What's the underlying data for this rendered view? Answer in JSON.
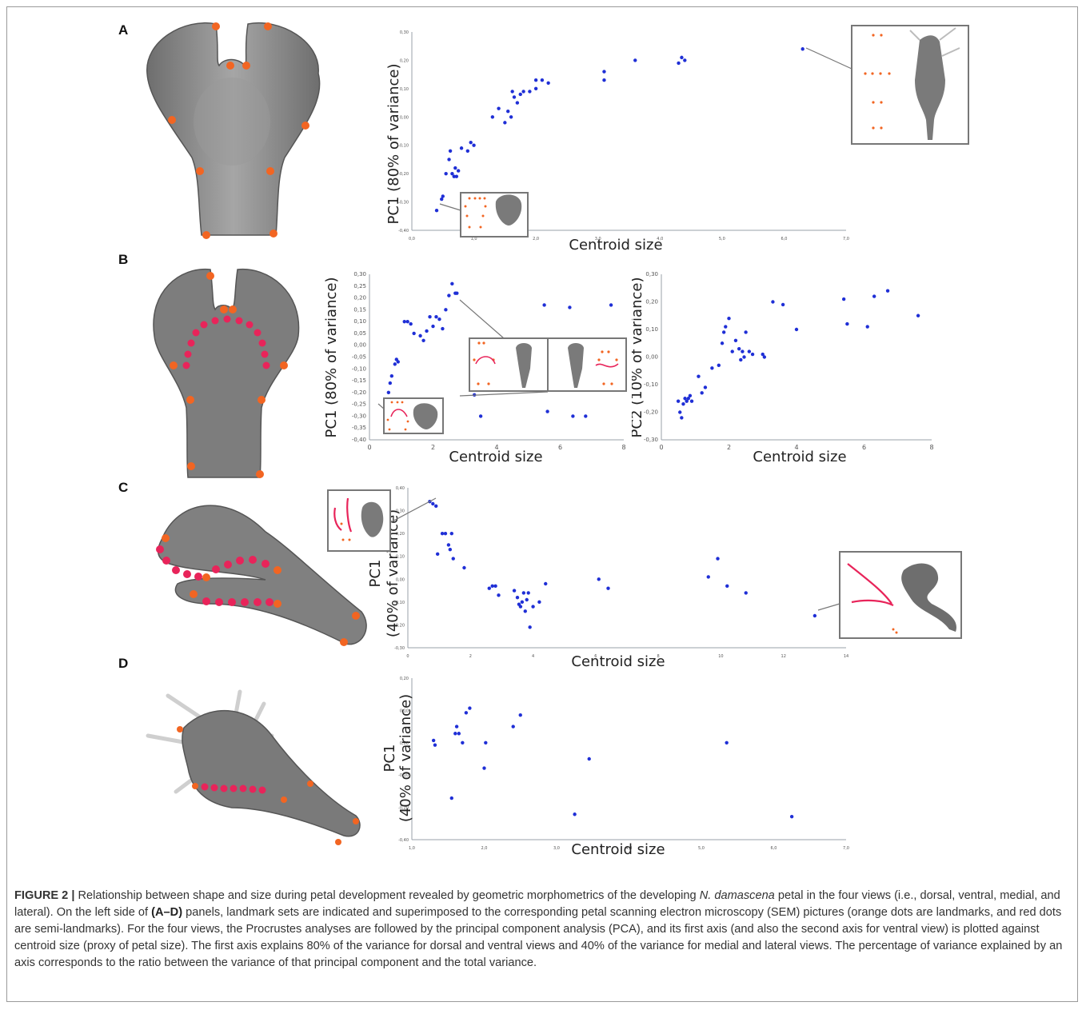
{
  "figure": {
    "panels": [
      {
        "letter": "A",
        "axes": [
          {
            "ylabel": "PC1 (80% of variance)",
            "xlabel": "Centroid size"
          }
        ]
      },
      {
        "letter": "B",
        "axes": [
          {
            "ylabel": "PC1 (80% of variance)",
            "xlabel": "Centroid size"
          },
          {
            "ylabel": "PC2 (10% of variance)",
            "xlabel": "Centroid size"
          }
        ]
      },
      {
        "letter": "C",
        "axes": [
          {
            "ylabel_line1": "PC1",
            "ylabel_line2": "(40% of variance)",
            "xlabel": "Centroid size"
          }
        ]
      },
      {
        "letter": "D",
        "axes": [
          {
            "ylabel_line1": "PC1",
            "ylabel_line2": "(40% of variance)",
            "xlabel": "Centroid size"
          }
        ]
      }
    ],
    "caption": {
      "label": "FIGURE 2 |",
      "part1": " Relationship between shape and size during petal development revealed by geometric morphometrics of the developing ",
      "species": "N. damascena",
      "part2": " petal in the four views (i.e., dorsal, ventral, medial, and lateral). On the left side of ",
      "panels_ref": "(A–D)",
      "part3": " panels, landmark sets are indicated and superimposed to the corresponding petal scanning electron microscopy (SEM) pictures (orange dots are landmarks, and red dots are semi-landmarks). For the four views, the Procrustes analyses are followed by the principal component analysis (PCA), and its first axis (and also the second axis for ventral view) is plotted against centroid size (proxy of petal size). The first axis explains 80% of the variance for dorsal and ventral views and 40% of the variance for medial and lateral views. The percentage of variance explained by an axis corresponds to the ratio between the variance of that principal component and the total variance."
    },
    "colors": {
      "points": "#1f2fd6",
      "landmark": "#f26522",
      "semilandmark": "#e8245a",
      "axis": "#9aa0a8",
      "petal": "#8c8c8c"
    }
  },
  "chart_data": [
    {
      "panel": "A",
      "type": "scatter",
      "xlabel": "Centroid size",
      "ylabel": "PC1 (80% of variance)",
      "xlim": [
        0,
        7
      ],
      "ylim": [
        -0.4,
        0.3
      ],
      "xticks": [
        "0,0",
        "1,0",
        "2,0",
        "3,0",
        "4,0",
        "5,0",
        "6,0",
        "7,0"
      ],
      "yticks": [
        "0,30",
        "0,20",
        "0,10",
        "0,00",
        "-0,10",
        "-0,20",
        "-0,30",
        "-0,40"
      ],
      "x": [
        0.4,
        0.5,
        0.48,
        0.55,
        0.6,
        0.62,
        0.65,
        0.68,
        0.7,
        0.72,
        0.75,
        0.8,
        0.9,
        0.95,
        1.0,
        1.3,
        1.4,
        1.5,
        1.55,
        1.6,
        1.62,
        1.65,
        1.7,
        1.75,
        1.8,
        1.9,
        2.0,
        2.0,
        2.1,
        2.2,
        3.1,
        3.1,
        3.6,
        4.3,
        4.35,
        4.4,
        6.3
      ],
      "y": [
        -0.33,
        -0.28,
        -0.29,
        -0.2,
        -0.15,
        -0.12,
        -0.2,
        -0.21,
        -0.18,
        -0.21,
        -0.19,
        -0.11,
        -0.12,
        -0.09,
        -0.1,
        0.0,
        0.03,
        -0.02,
        0.02,
        0.0,
        0.09,
        0.07,
        0.05,
        0.08,
        0.09,
        0.09,
        0.1,
        0.13,
        0.13,
        0.12,
        0.16,
        0.13,
        0.2,
        0.19,
        0.21,
        0.2,
        0.24
      ]
    },
    {
      "panel": "B-left",
      "type": "scatter",
      "xlabel": "Centroid size",
      "ylabel": "PC1 (80% of variance)",
      "xlim": [
        0,
        8
      ],
      "ylim": [
        -0.4,
        0.3
      ],
      "xticks": [
        "0",
        "2",
        "4",
        "6",
        "8"
      ],
      "yticks": [
        "0,30",
        "0,25",
        "0,20",
        "0,15",
        "0,10",
        "0,05",
        "0,00",
        "-0,05",
        "-0,10",
        "-0,15",
        "-0,20",
        "-0,25",
        "-0,30",
        "-0,35",
        "-0,40"
      ],
      "x": [
        0.5,
        0.6,
        0.6,
        0.65,
        0.7,
        0.8,
        0.85,
        0.9,
        1.1,
        1.2,
        1.3,
        1.4,
        1.6,
        1.8,
        1.7,
        1.9,
        2.0,
        2.1,
        2.2,
        2.3,
        2.4,
        2.5,
        2.6,
        2.7,
        2.75,
        3.3,
        3.5,
        5.5,
        5.6,
        6.3,
        6.4,
        6.8,
        7.6
      ],
      "y": [
        -0.26,
        -0.27,
        -0.2,
        -0.16,
        -0.13,
        -0.08,
        -0.06,
        -0.07,
        0.1,
        0.1,
        0.09,
        0.05,
        0.04,
        0.06,
        0.02,
        0.12,
        0.08,
        0.12,
        0.11,
        0.07,
        0.15,
        0.21,
        0.26,
        0.22,
        0.22,
        -0.21,
        -0.3,
        0.17,
        -0.28,
        0.16,
        -0.3,
        -0.3,
        0.17
      ]
    },
    {
      "panel": "B-right",
      "type": "scatter",
      "xlabel": "Centroid size",
      "ylabel": "PC2 (10% of variance)",
      "xlim": [
        0,
        8
      ],
      "ylim": [
        -0.3,
        0.3
      ],
      "xticks": [
        "0",
        "2",
        "4",
        "6",
        "8"
      ],
      "yticks": [
        "0,30",
        "0,20",
        "0,10",
        "0,00",
        "-0,10",
        "-0,20",
        "-0,30"
      ],
      "x": [
        0.5,
        0.55,
        0.6,
        0.65,
        0.7,
        0.75,
        0.8,
        0.85,
        0.9,
        1.1,
        1.2,
        1.3,
        1.5,
        1.7,
        1.8,
        1.85,
        1.9,
        2.0,
        2.1,
        2.2,
        2.3,
        2.35,
        2.4,
        2.45,
        2.5,
        2.6,
        2.7,
        3.0,
        3.05,
        3.3,
        3.6,
        4.0,
        5.4,
        5.5,
        6.1,
        6.3,
        6.7,
        7.6
      ],
      "y": [
        -0.16,
        -0.2,
        -0.22,
        -0.17,
        -0.15,
        -0.16,
        -0.15,
        -0.14,
        -0.16,
        -0.07,
        -0.13,
        -0.11,
        -0.04,
        -0.03,
        0.05,
        0.09,
        0.11,
        0.14,
        0.02,
        0.06,
        0.03,
        -0.01,
        0.02,
        0.0,
        0.09,
        0.02,
        0.01,
        0.01,
        0.0,
        0.2,
        0.19,
        0.1,
        0.21,
        0.12,
        0.11,
        0.22,
        0.24,
        0.15
      ]
    },
    {
      "panel": "C",
      "type": "scatter",
      "xlabel": "Centroid size",
      "ylabel": "PC1 (40% of variance)",
      "xlim": [
        0,
        14
      ],
      "ylim": [
        -0.3,
        0.4
      ],
      "xticks": [
        "0",
        "2",
        "4",
        "6",
        "8",
        "10",
        "12",
        "14"
      ],
      "yticks": [
        "0,40",
        "0,30",
        "0,20",
        "0,10",
        "0,00",
        "-0,10",
        "-0,20",
        "-0,30"
      ],
      "x": [
        0.7,
        0.8,
        0.9,
        0.95,
        1.1,
        1.2,
        1.3,
        1.35,
        1.4,
        1.45,
        1.8,
        2.6,
        2.7,
        2.8,
        2.9,
        3.4,
        3.5,
        3.55,
        3.6,
        3.65,
        3.7,
        3.75,
        3.8,
        3.85,
        3.9,
        4.0,
        4.2,
        4.4,
        6.1,
        6.4,
        9.6,
        9.9,
        10.2,
        10.8,
        13.0
      ],
      "y": [
        0.34,
        0.33,
        0.32,
        0.11,
        0.2,
        0.2,
        0.15,
        0.13,
        0.2,
        0.09,
        0.05,
        -0.04,
        -0.03,
        -0.03,
        -0.07,
        -0.05,
        -0.08,
        -0.11,
        -0.12,
        -0.1,
        -0.06,
        -0.14,
        -0.09,
        -0.06,
        -0.21,
        -0.12,
        -0.1,
        -0.02,
        0.0,
        -0.04,
        0.01,
        0.09,
        -0.03,
        -0.06,
        -0.16
      ]
    },
    {
      "panel": "D",
      "type": "scatter",
      "xlabel": "Centroid size",
      "ylabel": "PC1 (40% of variance)",
      "xlim": [
        1,
        7
      ],
      "ylim": [
        -0.4,
        0.3
      ],
      "xticks": [
        "1,0",
        "2,0",
        "3,0",
        "4,0",
        "5,0",
        "6,0",
        "7,0"
      ],
      "yticks": [
        "0,20",
        "0,10",
        "0,00",
        "-0,10",
        "-0,20",
        "-0,40"
      ],
      "x": [
        1.3,
        1.32,
        1.55,
        1.6,
        1.62,
        1.65,
        1.7,
        1.75,
        1.8,
        2.0,
        2.02,
        2.4,
        2.5,
        3.25,
        3.45,
        5.35,
        6.25
      ],
      "y": [
        0.03,
        0.01,
        -0.22,
        0.06,
        0.09,
        0.06,
        0.02,
        0.15,
        0.17,
        -0.09,
        0.02,
        0.09,
        0.14,
        -0.29,
        -0.05,
        0.02,
        -0.3
      ]
    }
  ]
}
